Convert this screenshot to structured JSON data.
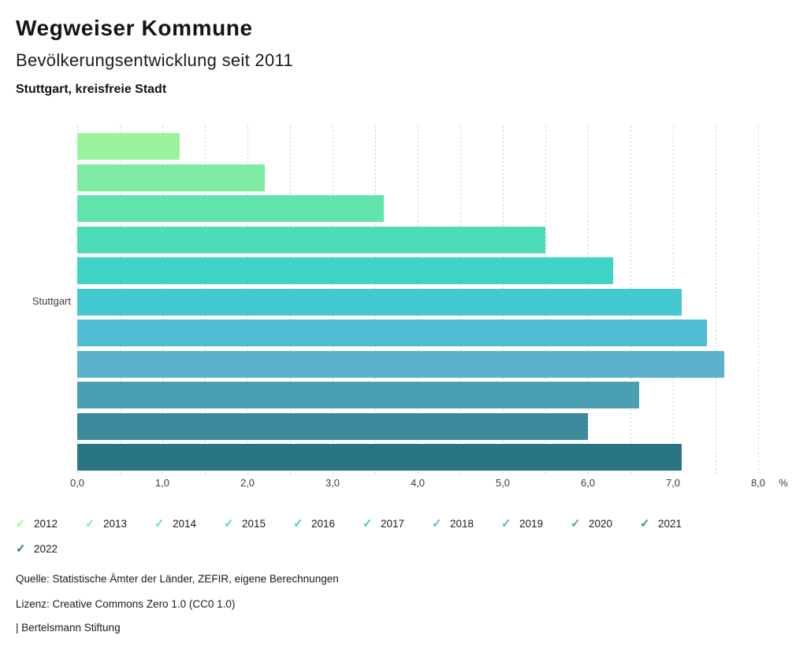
{
  "header": {
    "title": "Wegweiser Kommune",
    "subtitle": "Bevölkerungsentwicklung seit 2011",
    "region": "Stuttgart, kreisfreie Stadt"
  },
  "chart_data": {
    "type": "bar",
    "orientation": "horizontal",
    "title": "Bevölkerungsentwicklung seit 2011",
    "category": "Stuttgart",
    "series": [
      {
        "name": "2012",
        "value": 1.2,
        "color": "#9BF49B"
      },
      {
        "name": "2013",
        "value": 2.2,
        "color": "#7EECA0"
      },
      {
        "name": "2014",
        "value": 3.6,
        "color": "#61E3AC"
      },
      {
        "name": "2015",
        "value": 5.5,
        "color": "#4CDBB8"
      },
      {
        "name": "2016",
        "value": 6.3,
        "color": "#3FD3C6"
      },
      {
        "name": "2017",
        "value": 7.1,
        "color": "#43C9CF"
      },
      {
        "name": "2018",
        "value": 7.4,
        "color": "#4EBDD3"
      },
      {
        "name": "2019",
        "value": 7.6,
        "color": "#5DB2CB"
      },
      {
        "name": "2020",
        "value": 6.6,
        "color": "#4AA0B2"
      },
      {
        "name": "2021",
        "value": 6.0,
        "color": "#3A8A9B"
      },
      {
        "name": "2022",
        "value": 7.1,
        "color": "#2A7584"
      }
    ],
    "xlim": [
      0,
      8
    ],
    "grid_step": 0.5,
    "tick_step": 1.0,
    "tick_labels": [
      "0,0",
      "1,0",
      "2,0",
      "3,0",
      "4,0",
      "5,0",
      "6,0",
      "7,0",
      "8,0"
    ],
    "unit_label": "%",
    "grid": true,
    "gridline_color": "#c9c9c9",
    "legend_position": "bottom",
    "legend_check_icon": "✓"
  },
  "footer": {
    "source": "Quelle: Statistische Ämter der Länder, ZEFIR, eigene Berechnungen",
    "license": "Lizenz: Creative Commons Zero 1.0 (CC0 1.0)",
    "attribution": "| Bertelsmann Stiftung"
  }
}
